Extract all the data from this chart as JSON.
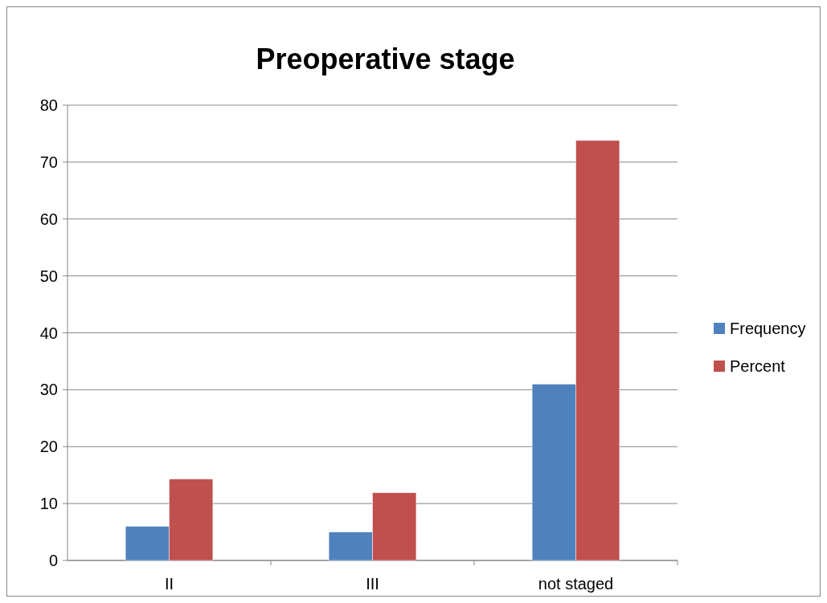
{
  "chart_data": {
    "type": "bar",
    "title": "Preoperative stage",
    "categories": [
      "II",
      "III",
      "not staged"
    ],
    "series": [
      {
        "name": "Frequency",
        "color": "#4f81bd",
        "values": [
          6,
          5,
          31
        ]
      },
      {
        "name": "Percent",
        "color": "#c0504d",
        "values": [
          14.3,
          11.9,
          73.8
        ]
      }
    ],
    "ylim": [
      0,
      80
    ],
    "yticks": [
      0,
      10,
      20,
      30,
      40,
      50,
      60,
      70,
      80
    ],
    "grid": "y",
    "legend": "right"
  }
}
